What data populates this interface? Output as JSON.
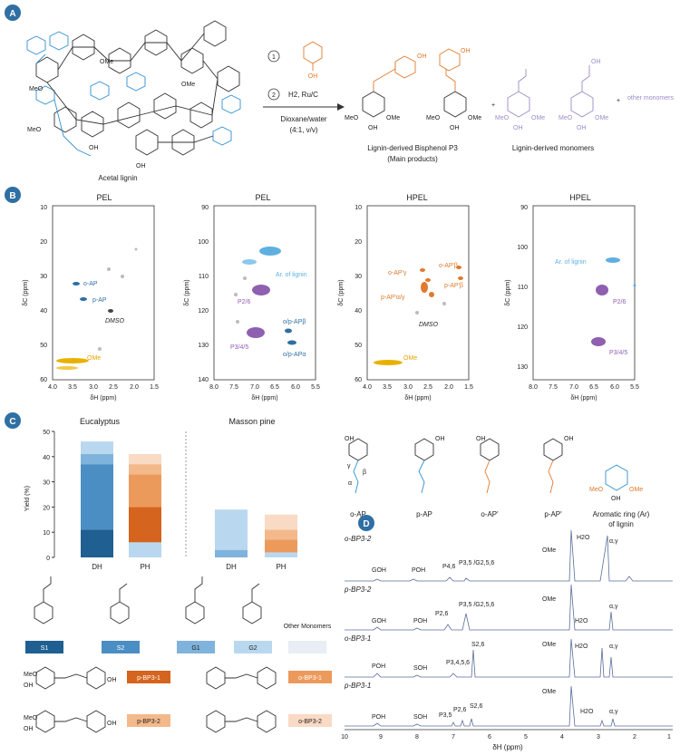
{
  "panels": {
    "a": "A",
    "b": "B",
    "c": "C",
    "d": "D"
  },
  "panelA": {
    "step1": "1",
    "step2": "2",
    "reagent1": "OH",
    "reagent2": "H2, Ru/C",
    "solvent": "Dioxane/water",
    "ratio": "(4:1, v/v)",
    "start_label": "Acetal lignin",
    "product_main": "Lignin-derived Bisphenol P3",
    "product_main_sub": "(Main products)",
    "monomers_label": "Lignin-derived monomers",
    "plus": "+",
    "other_monomers": "other monomers",
    "substituents": {
      "oh": "OH",
      "meo": "MeO",
      "ome": "OMe"
    }
  },
  "panelB": {
    "spectra": [
      {
        "title": "PEL",
        "xlabel": "δH (ppm)",
        "ylabel": "δC (ppm)",
        "xticks": [
          "4.0",
          "3.5",
          "3.0",
          "2.5",
          "2.0",
          "1.5"
        ],
        "yticks": [
          "10",
          "20",
          "30",
          "40",
          "50",
          "60"
        ],
        "labels": [
          "o-AP",
          "p-AP",
          "DMSO",
          "OMe"
        ]
      },
      {
        "title": "PEL",
        "xlabel": "δH (ppm)",
        "ylabel": "δC (ppm)",
        "xticks": [
          "8.0",
          "7.5",
          "7.0",
          "6.5",
          "6.0",
          "5.5"
        ],
        "yticks": [
          "90",
          "100",
          "110",
          "120",
          "130",
          "140"
        ],
        "labels": [
          "Ar. of lignin",
          "P2/6",
          "P3/4/5",
          "o/p-APβ",
          "o/p-APα"
        ]
      },
      {
        "title": "HPEL",
        "xlabel": "δH (ppm)",
        "ylabel": "δC (ppm)",
        "xticks": [
          "4.0",
          "3.5",
          "3.0",
          "2.5",
          "2.0",
          "1.5"
        ],
        "yticks": [
          "10",
          "20",
          "30",
          "40",
          "50",
          "60"
        ],
        "labels": [
          "o-AP'γ",
          "o-AP'β",
          "p-AP'α/γ",
          "p-AP'β",
          "DMSO",
          "OMe"
        ]
      },
      {
        "title": "HPEL",
        "xlabel": "δH (ppm)",
        "ylabel": "δC (ppm)",
        "xticks": [
          "8.0",
          "7.5",
          "7.0",
          "6.5",
          "6.0",
          "5.5"
        ],
        "yticks": [
          "90",
          "100",
          "110",
          "120",
          "130"
        ],
        "labels": [
          "Ar. of lignin",
          "P2/6",
          "P3/4/5"
        ]
      }
    ]
  },
  "panelC": {
    "groups": [
      "Eucalyptus",
      "Masson pine"
    ],
    "ylabel": "Yield (%)",
    "yticks": [
      "0",
      "10",
      "20",
      "30",
      "40",
      "50"
    ],
    "categories": [
      "DH",
      "PH",
      "DH",
      "PH"
    ],
    "structures": [
      {
        "name": "o-AP"
      },
      {
        "name": "p-AP"
      },
      {
        "name": "o-AP'"
      },
      {
        "name": "p-AP'"
      },
      {
        "name": "Aromatic ring (Ar)",
        "sub": "of lignin"
      }
    ],
    "legend_monomers": [
      "S1",
      "S2",
      "G1",
      "G2",
      "Other Monomers"
    ],
    "legend_bps": [
      "p-BP3-1",
      "o-BP3-1",
      "p-BP3-2",
      "o-BP3-2"
    ],
    "structure_letters": {
      "alpha": "α",
      "beta": "β",
      "gamma": "γ"
    }
  },
  "chart_data": {
    "type": "bar",
    "categories": [
      "Eucalyptus DH",
      "Eucalyptus PH",
      "Masson pine DH",
      "Masson pine PH"
    ],
    "ylim": [
      0,
      50
    ],
    "ylabel": "Yield (%)",
    "series": [
      {
        "name": "S1",
        "values": [
          11,
          0,
          0,
          0
        ],
        "color": "#1f5f91"
      },
      {
        "name": "S2",
        "values": [
          26,
          0,
          0,
          0
        ],
        "color": "#4a8ec4"
      },
      {
        "name": "G1",
        "values": [
          4,
          0,
          3,
          0
        ],
        "color": "#7fb3dc"
      },
      {
        "name": "G2",
        "values": [
          5,
          6,
          16,
          2
        ],
        "color": "#b9d8ef"
      },
      {
        "name": "Other Monomers",
        "values": [
          0,
          0,
          0,
          0
        ],
        "color": "#e8eef4"
      },
      {
        "name": "p-BP3-1",
        "values": [
          0,
          14,
          0,
          0
        ],
        "color": "#d5641e"
      },
      {
        "name": "o-BP3-1",
        "values": [
          0,
          13,
          0,
          5
        ],
        "color": "#ec9a5c"
      },
      {
        "name": "p-BP3-2",
        "values": [
          0,
          4,
          0,
          4
        ],
        "color": "#f4b98b"
      },
      {
        "name": "o-BP3-2",
        "values": [
          0,
          4,
          0,
          6
        ],
        "color": "#f9dac4"
      }
    ]
  },
  "panelD": {
    "xlabel": "δH (ppm)",
    "xticks": [
      "10",
      "9",
      "8",
      "7",
      "6",
      "5",
      "4",
      "3",
      "2",
      "1"
    ],
    "traces": [
      {
        "name": "o-BP3-2",
        "labels": [
          "GOH",
          "POH",
          "P4,6",
          "P3,5 /G2,5,6",
          "OMe",
          "H2O",
          "α,γ"
        ]
      },
      {
        "name": "p-BP3-2",
        "labels": [
          "GOH",
          "POH",
          "P2,6",
          "P3,5 /G2,5,6",
          "OMe",
          "H2O",
          "α,γ"
        ]
      },
      {
        "name": "o-BP3-1",
        "labels": [
          "POH",
          "SOH",
          "P3,4,5,6",
          "S2,6",
          "OMe",
          "H2O",
          "α,γ"
        ]
      },
      {
        "name": "p-BP3-1",
        "labels": [
          "POH",
          "SOH",
          "P3,5",
          "P2,6",
          "S2,6",
          "OMe",
          "H2O",
          "α,γ"
        ]
      }
    ]
  }
}
